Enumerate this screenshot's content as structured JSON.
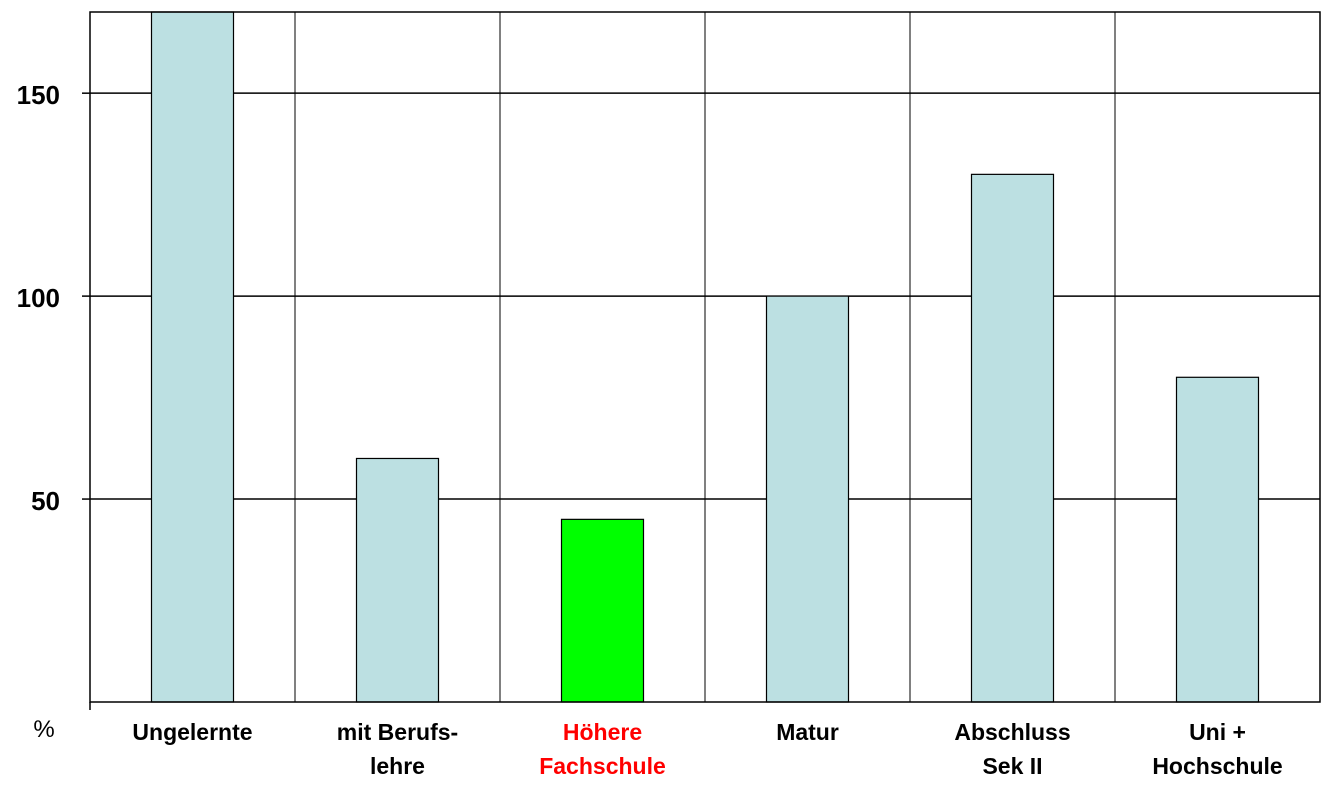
{
  "chart_data": {
    "type": "bar",
    "categories": [
      [
        "Ungelernte"
      ],
      [
        "mit Berufs-",
        "lehre"
      ],
      [
        "Höhere",
        "Fachschule"
      ],
      [
        "Matur"
      ],
      [
        "Abschluss",
        "Sek II"
      ],
      [
        "Uni +",
        "Hochschule"
      ]
    ],
    "values": [
      170,
      60,
      45,
      100,
      130,
      80
    ],
    "bar_colors": [
      "#bce0e2",
      "#bce0e2",
      "#00ff00",
      "#bce0e2",
      "#bce0e2",
      "#bce0e2"
    ],
    "label_colors": [
      "#000000",
      "#000000",
      "#ff0000",
      "#000000",
      "#000000",
      "#000000"
    ],
    "ylim": [
      0,
      170
    ],
    "yticks": [
      50,
      100,
      150
    ],
    "ylabel": "%",
    "title": "",
    "grid": true
  }
}
